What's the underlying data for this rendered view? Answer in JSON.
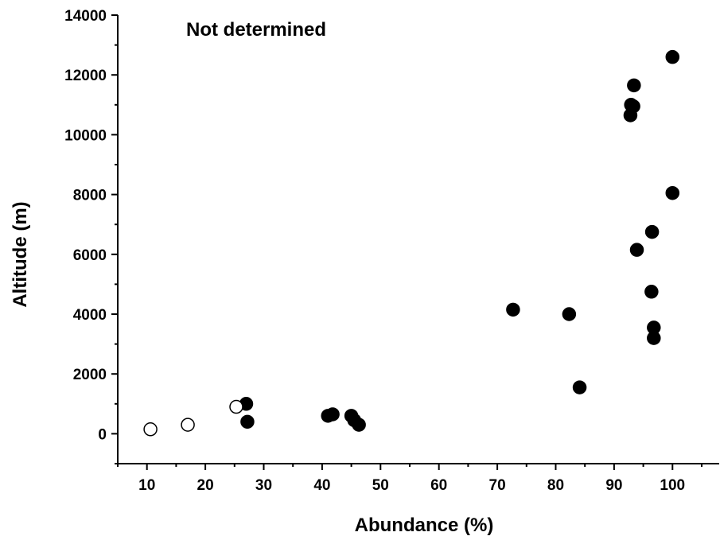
{
  "chart_data": {
    "type": "scatter",
    "title": "",
    "annotation": "Not determined",
    "xlabel": "Abundance (%)",
    "ylabel": "Altitude (m)",
    "xlim": [
      5,
      108
    ],
    "ylim": [
      -1000,
      14000
    ],
    "x_ticks": [
      10,
      20,
      30,
      40,
      50,
      60,
      70,
      80,
      90,
      100
    ],
    "y_ticks": [
      0,
      2000,
      4000,
      6000,
      8000,
      10000,
      12000,
      14000
    ],
    "grid": false,
    "legend": "none",
    "series": [
      {
        "marker": "filled-circle",
        "color": "#000000",
        "points": [
          {
            "x": 27.0,
            "y": 1000
          },
          {
            "x": 27.2,
            "y": 400
          },
          {
            "x": 41.0,
            "y": 600
          },
          {
            "x": 41.8,
            "y": 650
          },
          {
            "x": 45.0,
            "y": 600
          },
          {
            "x": 45.5,
            "y": 450
          },
          {
            "x": 46.3,
            "y": 300
          },
          {
            "x": 72.7,
            "y": 4150
          },
          {
            "x": 82.3,
            "y": 4000
          },
          {
            "x": 84.1,
            "y": 1550
          },
          {
            "x": 92.8,
            "y": 10650
          },
          {
            "x": 92.9,
            "y": 11000
          },
          {
            "x": 93.3,
            "y": 10950
          },
          {
            "x": 93.4,
            "y": 11650
          },
          {
            "x": 93.9,
            "y": 6150
          },
          {
            "x": 96.4,
            "y": 4750
          },
          {
            "x": 96.5,
            "y": 6750
          },
          {
            "x": 96.8,
            "y": 3550
          },
          {
            "x": 96.8,
            "y": 3200
          },
          {
            "x": 100.0,
            "y": 12600
          },
          {
            "x": 100.0,
            "y": 8050
          }
        ]
      },
      {
        "marker": "open-circle",
        "color": "#000000",
        "points": [
          {
            "x": 10.6,
            "y": 150
          },
          {
            "x": 17.0,
            "y": 300
          },
          {
            "x": 25.3,
            "y": 900
          }
        ]
      }
    ]
  }
}
